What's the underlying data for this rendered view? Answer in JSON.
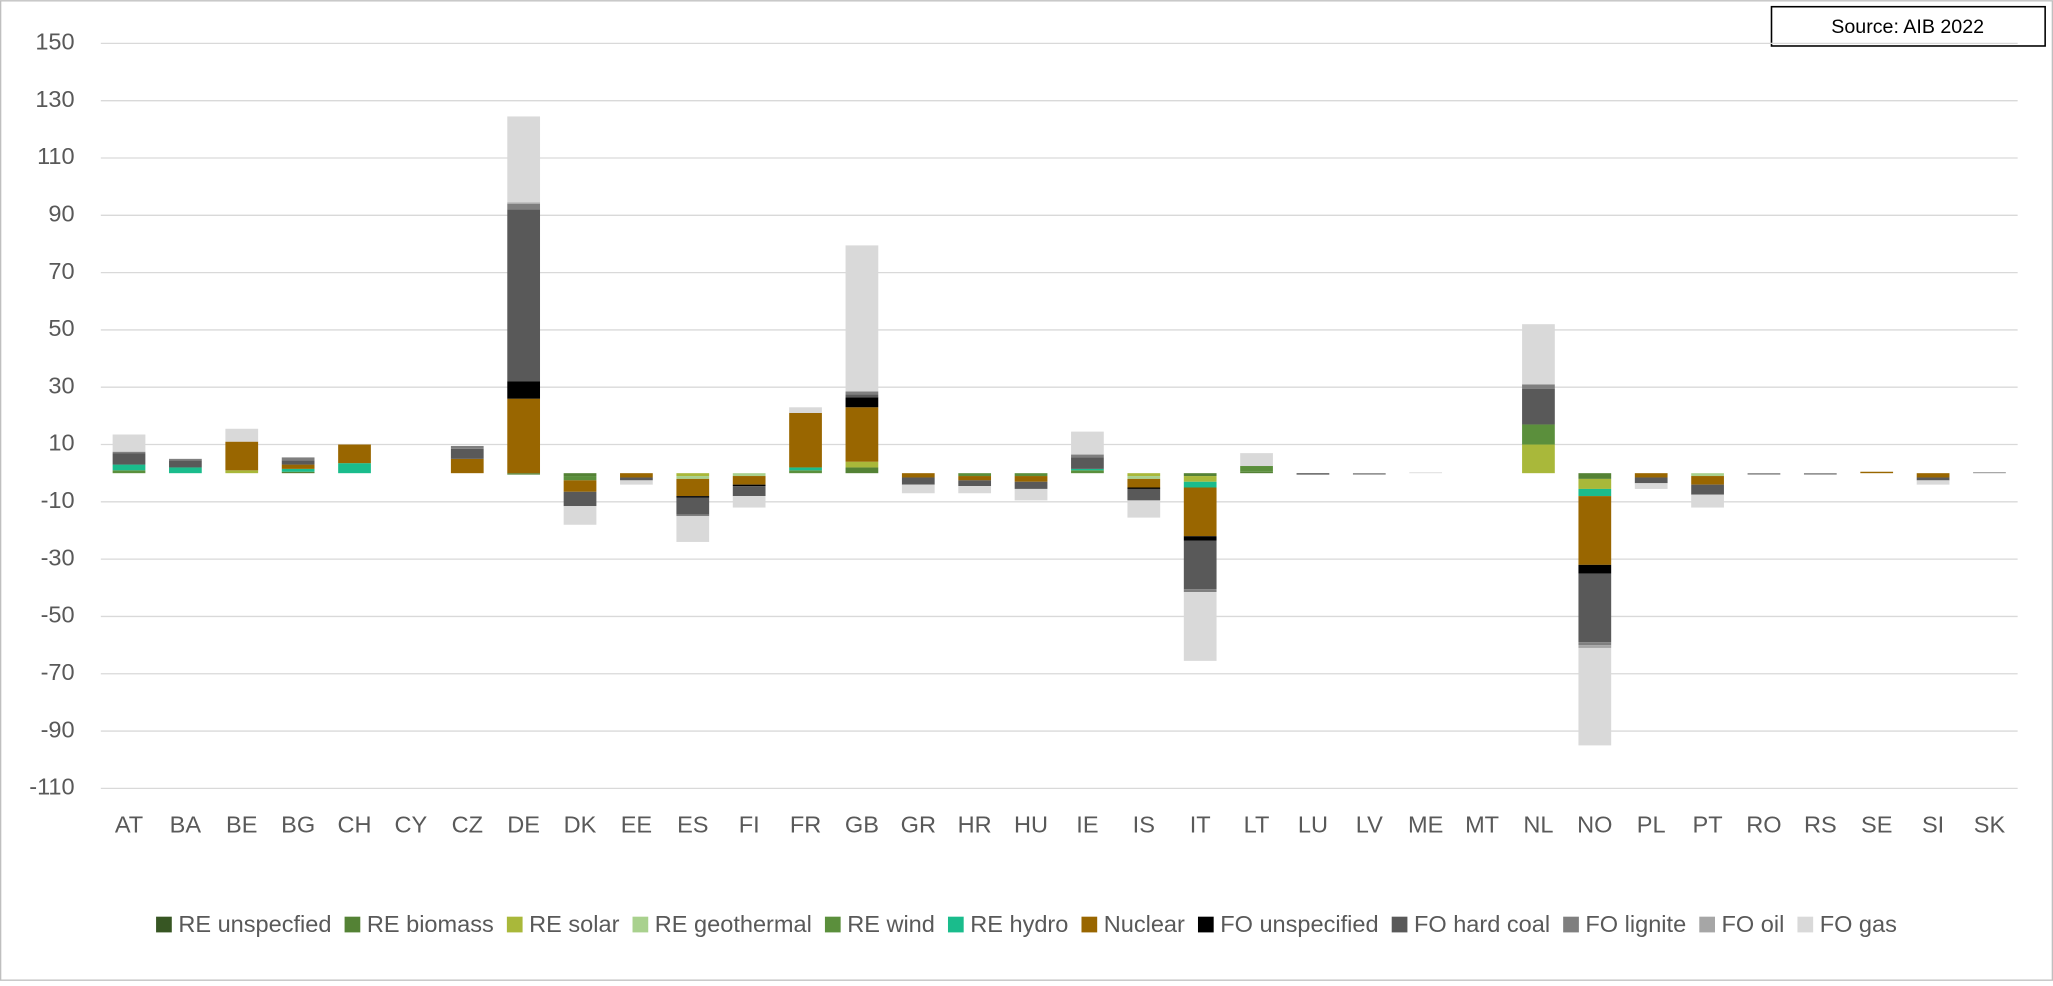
{
  "chart_data": {
    "type": "stacked_bar",
    "source": "Source: AIB 2022",
    "categories": [
      "AT",
      "BA",
      "BE",
      "BG",
      "CH",
      "CY",
      "CZ",
      "DE",
      "DK",
      "EE",
      "ES",
      "FI",
      "FR",
      "GB",
      "GR",
      "HR",
      "HU",
      "IE",
      "IS",
      "IT",
      "LT",
      "LU",
      "LV",
      "ME",
      "MT",
      "NL",
      "NO",
      "PL",
      "PT",
      "RO",
      "RS",
      "SE",
      "SI",
      "SK"
    ],
    "ylim": [
      -110,
      150
    ],
    "yticks": [
      150,
      130,
      110,
      90,
      70,
      50,
      30,
      10,
      -10,
      -30,
      -50,
      -70,
      -90,
      -110
    ],
    "grid": true,
    "legend": "bottom",
    "series": [
      {
        "name": "RE unspecfied",
        "color": "#375623",
        "values": [
          0,
          0,
          0,
          0,
          0,
          0,
          0,
          0,
          0,
          0,
          0,
          0,
          0,
          0,
          0,
          0,
          0,
          0,
          0,
          0,
          0,
          0,
          0,
          0,
          0,
          0,
          0,
          0,
          0,
          0,
          0,
          0,
          0,
          0
        ]
      },
      {
        "name": "RE biomass",
        "color": "#548235",
        "values": [
          0,
          0,
          0,
          0.5,
          0,
          0,
          0,
          -0.5,
          -1,
          0,
          0,
          0,
          0,
          2,
          0,
          0,
          0,
          0,
          0,
          -1,
          0.5,
          0,
          0,
          0,
          0,
          0,
          -2,
          0,
          0,
          0,
          0,
          0,
          0,
          0
        ]
      },
      {
        "name": "RE solar",
        "color": "#a9b83a",
        "values": [
          0,
          0,
          1,
          0,
          0,
          0,
          0,
          0,
          0,
          0,
          -1,
          0,
          0,
          2,
          0,
          0,
          0,
          0,
          -1,
          -2,
          0,
          0,
          0,
          0,
          0,
          10,
          -3.5,
          0,
          0,
          0,
          0,
          0,
          0,
          0
        ]
      },
      {
        "name": "RE geothermal",
        "color": "#a9d18e",
        "values": [
          0,
          0,
          0,
          0,
          0,
          0,
          0,
          0,
          0,
          0,
          -1,
          -1,
          0,
          0,
          0,
          0,
          0,
          0,
          -1,
          0,
          0,
          0,
          0,
          0,
          0,
          0,
          0,
          0,
          -1,
          0,
          0,
          0,
          0,
          0
        ]
      },
      {
        "name": "RE wind",
        "color": "#5b8f3c",
        "values": [
          1,
          0,
          0,
          0,
          0,
          0,
          0,
          0,
          -1.5,
          0,
          0,
          0,
          1,
          0,
          0,
          -1,
          -1,
          1,
          0,
          0,
          2,
          0,
          0,
          0,
          0,
          7,
          0,
          0,
          0,
          0,
          0,
          0,
          0,
          0
        ]
      },
      {
        "name": "RE hydro",
        "color": "#1abc8c",
        "values": [
          2,
          2,
          0,
          1,
          3.5,
          0,
          0,
          0,
          0,
          0,
          0,
          0,
          1,
          0,
          0,
          0,
          0,
          0.5,
          0,
          -2,
          0,
          0,
          0,
          0,
          0,
          0,
          -2.5,
          0,
          0,
          0,
          0,
          0,
          0,
          0
        ]
      },
      {
        "name": "Nuclear",
        "color": "#996600",
        "values": [
          0,
          0,
          10,
          1.5,
          6.5,
          0,
          5,
          26,
          -4,
          -1.5,
          -6,
          -3,
          19,
          19,
          -1.5,
          -1.5,
          -2,
          0,
          -3,
          -17,
          0,
          0,
          0,
          0,
          0,
          0,
          -24,
          -1.5,
          -3,
          0,
          0,
          0.5,
          -1.5,
          0
        ]
      },
      {
        "name": "FO unspecified",
        "color": "#000000",
        "values": [
          0,
          0,
          0,
          0,
          0,
          0,
          0,
          6,
          0,
          0,
          -0.5,
          -0.5,
          0,
          3.5,
          0,
          0,
          0,
          0,
          -0.5,
          -1.5,
          0,
          0,
          0,
          0,
          0,
          0,
          -3,
          0,
          0,
          0,
          0,
          0,
          0,
          0
        ]
      },
      {
        "name": "FO hard coal",
        "color": "#595959",
        "values": [
          4,
          2.5,
          0,
          1.5,
          0,
          0,
          3.5,
          60,
          -5,
          -1,
          -6,
          -3.5,
          0,
          1,
          -2.5,
          -2,
          -2.5,
          4,
          -4,
          -17,
          0,
          -0.5,
          0,
          0,
          0,
          12.5,
          -24,
          -2,
          -3.5,
          0,
          0,
          0,
          -1,
          0
        ]
      },
      {
        "name": "FO lignite",
        "color": "#7f7f7f",
        "values": [
          0.5,
          0.5,
          0,
          1,
          0,
          0,
          1,
          2,
          0,
          0,
          -0.5,
          0,
          0,
          1,
          0,
          0,
          0,
          1,
          0,
          -1,
          0,
          0,
          -0.5,
          0,
          0,
          1.5,
          -1,
          0,
          0,
          -0.5,
          -0.5,
          0,
          0,
          0.3
        ]
      },
      {
        "name": "FO oil",
        "color": "#a6a6a6",
        "values": [
          0,
          0,
          0,
          0,
          0,
          0,
          0,
          0.5,
          0,
          0,
          0,
          0,
          0,
          0,
          0,
          0,
          0,
          0,
          0,
          0,
          0,
          0,
          0,
          0,
          0,
          0,
          -1,
          0,
          0,
          0,
          0,
          0,
          0,
          0
        ]
      },
      {
        "name": "FO gas",
        "color": "#d9d9d9",
        "values": [
          6,
          0,
          4.5,
          0,
          0,
          0,
          0,
          30,
          -6.5,
          -1.5,
          -9,
          -4,
          2,
          51,
          -3,
          -2.5,
          -4,
          8,
          -6,
          -24,
          4.5,
          0,
          0,
          0.3,
          0,
          21,
          -34,
          -2,
          -4.5,
          0,
          0,
          0,
          -1.5,
          0
        ]
      }
    ]
  }
}
